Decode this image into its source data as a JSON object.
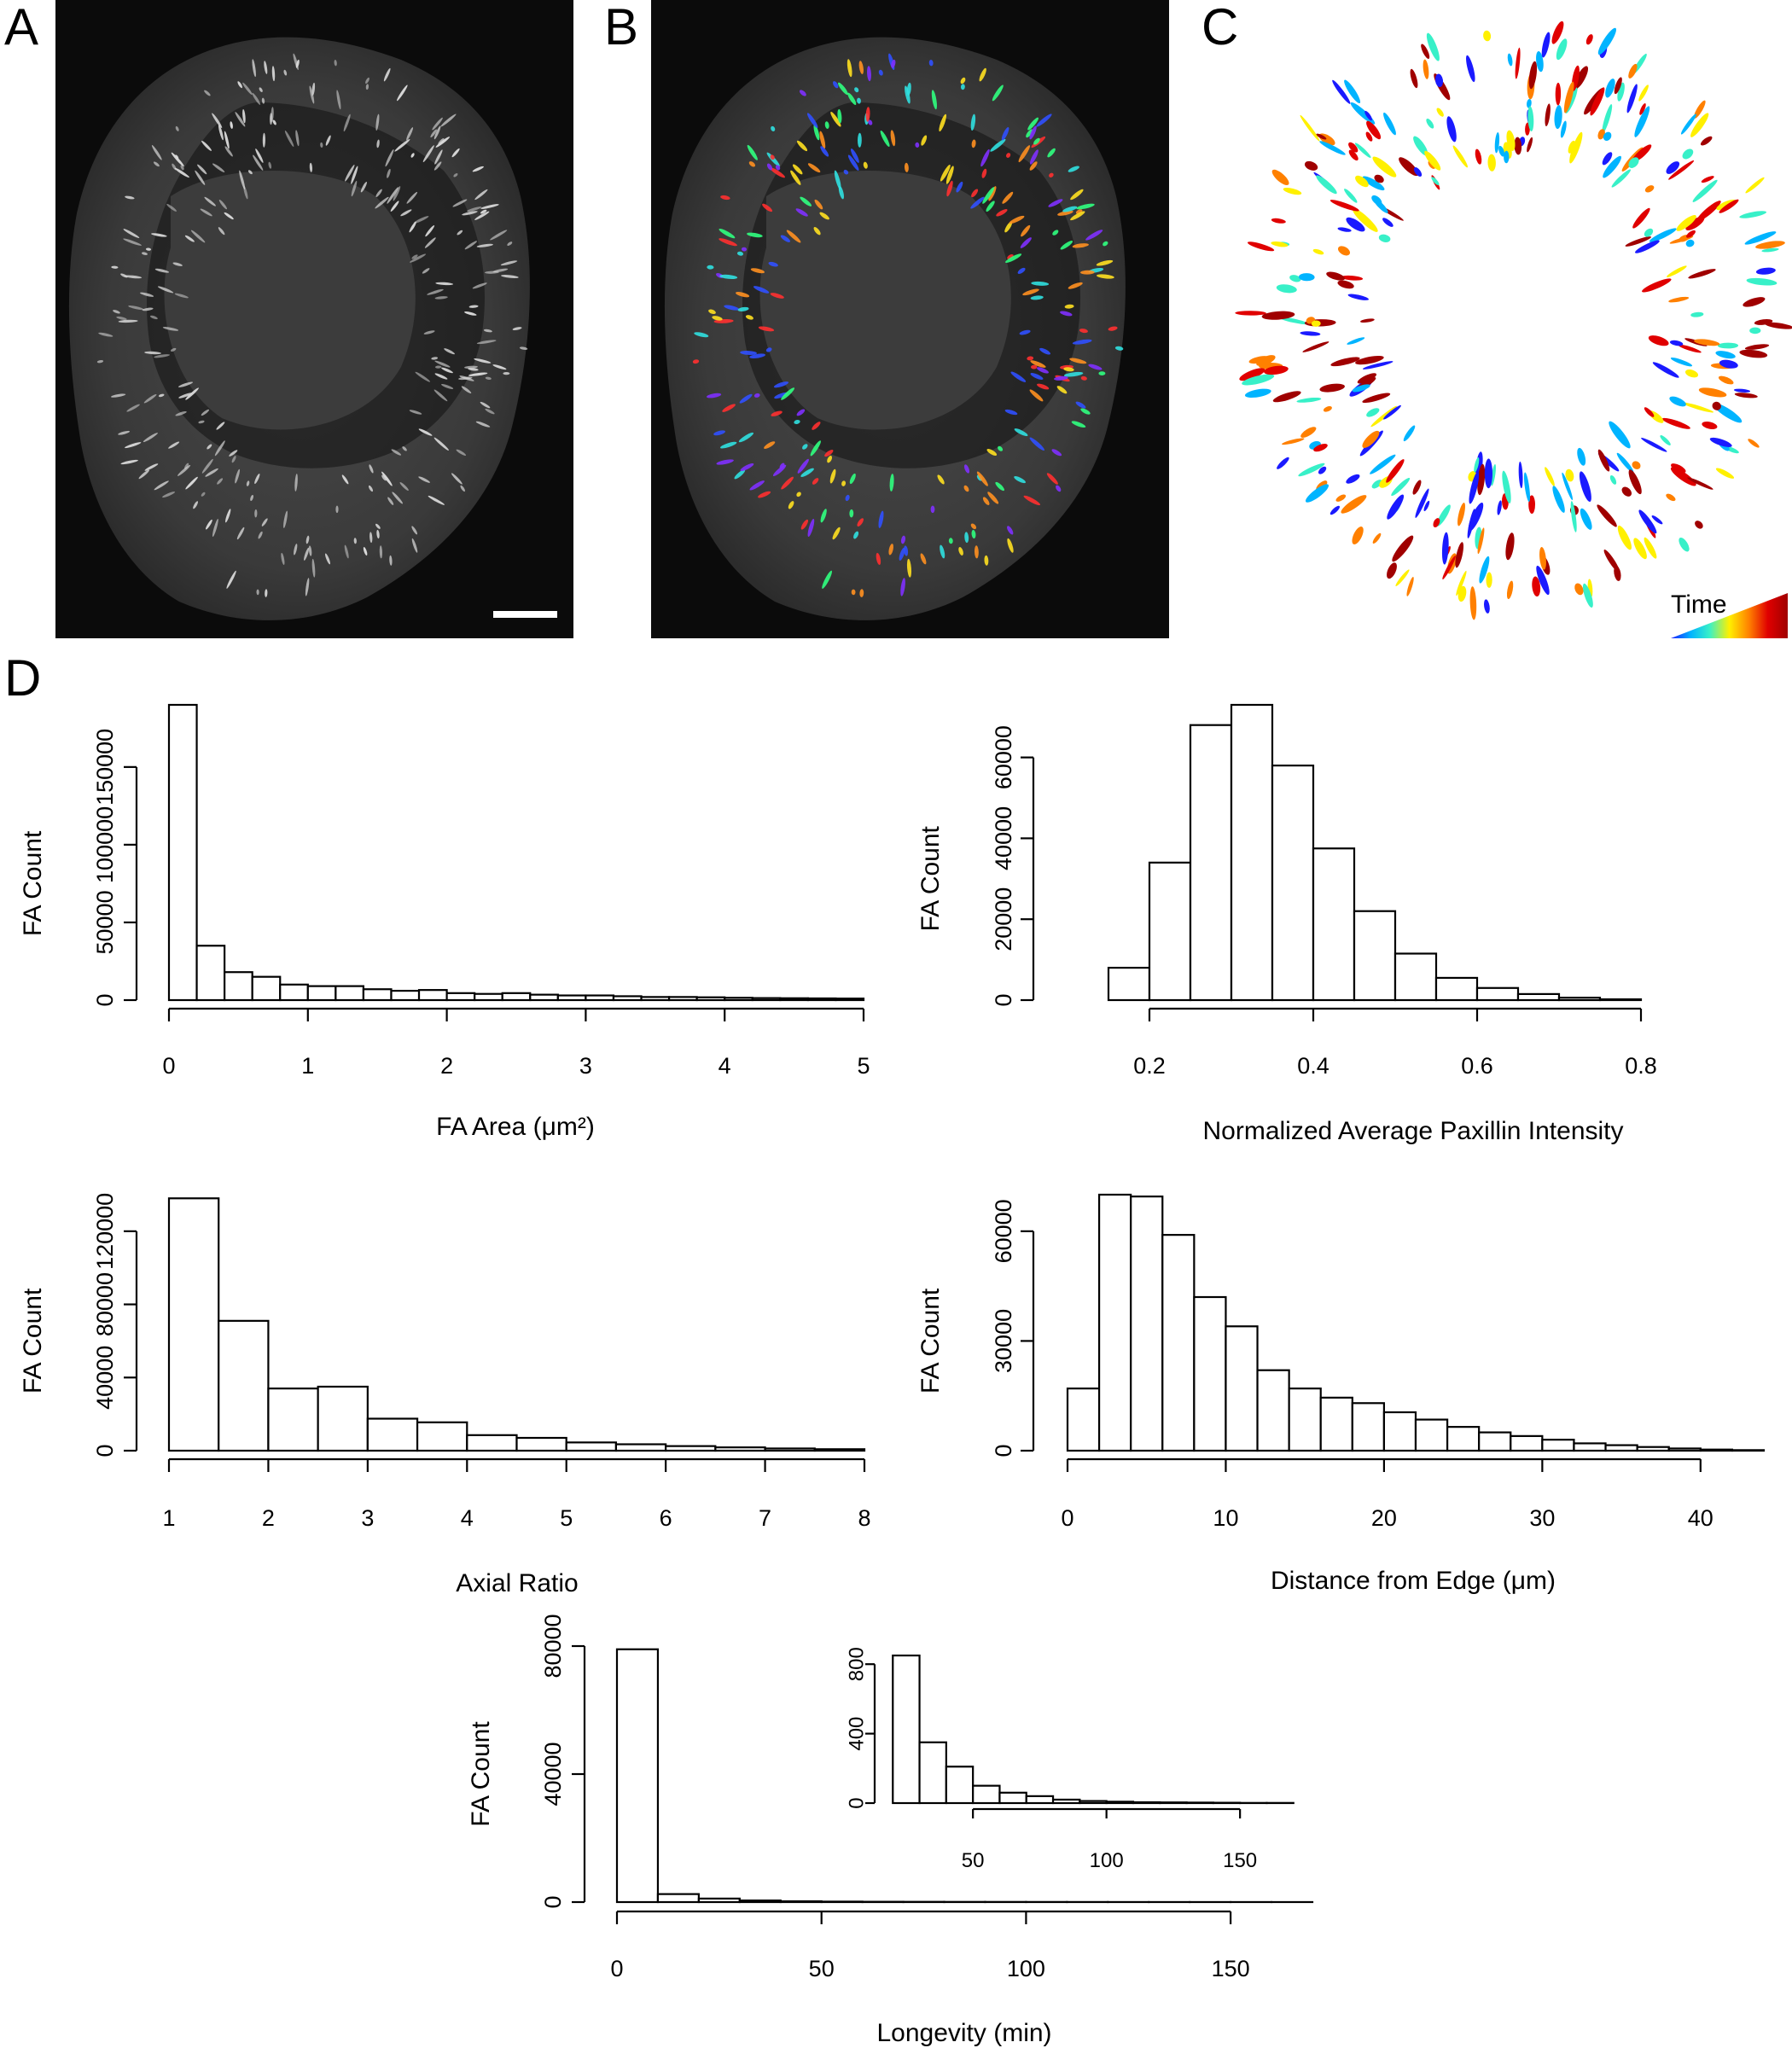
{
  "panels": {
    "a_label": "A",
    "b_label": "B",
    "c_label": "C",
    "d_label": "D",
    "c_colorbar_label": "Time"
  },
  "colors": {
    "time_scale": [
      "#1a1aff",
      "#00b4ff",
      "#38f0c8",
      "#fff000",
      "#ff8000",
      "#e00000",
      "#a00000"
    ]
  },
  "chart_data": [
    {
      "id": "area",
      "type": "bar",
      "xlabel": "FA Area (μm²)",
      "ylabel": "FA Count",
      "xticks": [
        0,
        1,
        2,
        3,
        4,
        5
      ],
      "yticks": [
        0,
        50000,
        100000,
        150000
      ],
      "xlim": [
        0,
        5
      ],
      "ylim": [
        0,
        190000
      ],
      "bin_width": 0.2,
      "bin_start": 0,
      "values": [
        190000,
        35000,
        18000,
        15000,
        10000,
        9000,
        9000,
        7000,
        6000,
        6500,
        4500,
        4000,
        4500,
        3500,
        3000,
        3000,
        2500,
        2000,
        2000,
        1800,
        1500,
        1300,
        1200,
        1100,
        1000
      ]
    },
    {
      "id": "intensity",
      "type": "bar",
      "xlabel": "Normalized Average Paxillin Intensity",
      "ylabel": "FA Count",
      "xticks": [
        0.2,
        0.4,
        0.6,
        0.8
      ],
      "yticks": [
        0,
        20000,
        40000,
        60000
      ],
      "xlim": [
        0.1,
        0.95
      ],
      "ylim": [
        0,
        73000
      ],
      "bin_width": 0.05,
      "bin_start": 0.15,
      "values": [
        8000,
        34000,
        68000,
        73000,
        58000,
        37500,
        22000,
        11500,
        5500,
        3000,
        1500,
        600,
        200
      ]
    },
    {
      "id": "axial",
      "type": "bar",
      "xlabel": "Axial Ratio",
      "ylabel": "FA Count",
      "xticks": [
        1,
        2,
        3,
        4,
        5,
        6,
        7,
        8
      ],
      "yticks": [
        0,
        40000,
        80000,
        120000
      ],
      "xlim": [
        1,
        8
      ],
      "ylim": [
        0,
        140000
      ],
      "bin_width": 0.5,
      "bin_start": 1,
      "values": [
        138000,
        71000,
        34000,
        35000,
        17500,
        15500,
        8500,
        7000,
        4500,
        3500,
        2500,
        1800,
        1200,
        800
      ]
    },
    {
      "id": "distance",
      "type": "bar",
      "xlabel": "Distance from Edge (μm)",
      "ylabel": "FA Count",
      "xticks": [
        0,
        10,
        20,
        30,
        40
      ],
      "yticks": [
        0,
        30000,
        60000
      ],
      "xlim": [
        0,
        44
      ],
      "ylim": [
        0,
        70000
      ],
      "bin_width": 2,
      "bin_start": 0,
      "values": [
        17000,
        70000,
        69500,
        59000,
        42000,
        34000,
        22000,
        17000,
        14500,
        13000,
        10500,
        8500,
        6500,
        5000,
        4000,
        3000,
        2000,
        1500,
        1000,
        600,
        300,
        150
      ]
    },
    {
      "id": "longevity",
      "type": "bar",
      "xlabel": "Longevity (min)",
      "ylabel": "FA Count",
      "xticks": [
        0,
        50,
        100,
        150
      ],
      "yticks": [
        0,
        40000,
        80000
      ],
      "xlim": [
        0,
        170
      ],
      "ylim": [
        0,
        80000
      ],
      "bin_width": 10,
      "bin_start": 0,
      "values": [
        79000,
        2500,
        1100,
        500,
        250,
        150,
        100,
        80,
        60,
        50,
        40,
        30,
        20,
        15,
        10,
        10,
        5
      ]
    },
    {
      "id": "longevity_inset",
      "type": "bar",
      "xlabel": "",
      "ylabel": "",
      "xticks": [
        50,
        100,
        150
      ],
      "yticks": [
        0,
        400,
        800
      ],
      "xlim": [
        18,
        172
      ],
      "ylim": [
        0,
        860
      ],
      "bin_width": 10,
      "bin_start": 20,
      "values": [
        850,
        350,
        210,
        100,
        60,
        40,
        20,
        12,
        8,
        5,
        4,
        3,
        2,
        1,
        1
      ]
    }
  ]
}
